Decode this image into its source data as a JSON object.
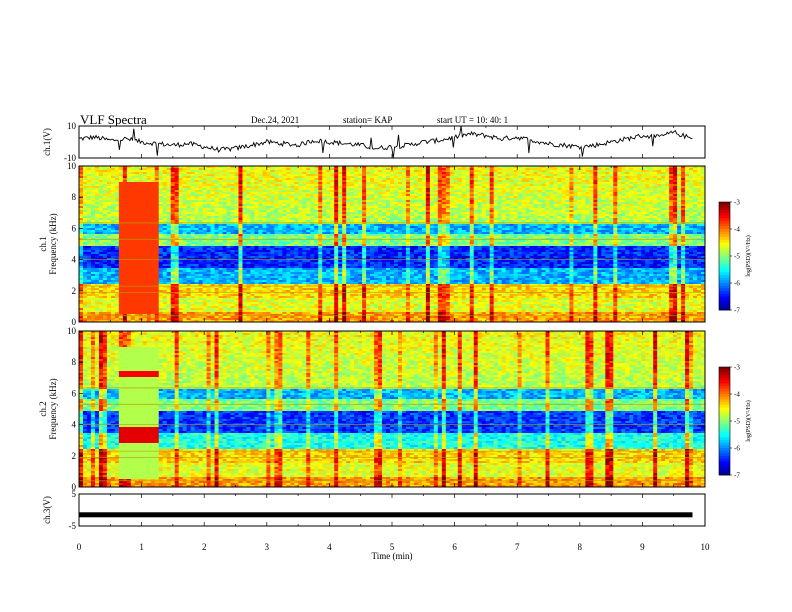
{
  "header": {
    "title": "VLF Spectra",
    "date": "Dec.24, 2021",
    "station": "station= KAP",
    "start": "start UT = 10: 40: 1"
  },
  "chart_data": [
    {
      "type": "line",
      "panel": "ch1-waveform",
      "ylabel": "ch.1(V)",
      "ylim": [
        -10,
        10
      ],
      "yticks": [
        "10",
        "-10"
      ],
      "xlim": [
        0,
        10
      ],
      "x": [
        0,
        0.25,
        0.5,
        0.75,
        1.0,
        1.25,
        1.5,
        1.75,
        2.0,
        2.25,
        2.5,
        2.75,
        3.0,
        3.25,
        3.5,
        3.75,
        4.0,
        4.25,
        4.5,
        4.75,
        5.0,
        5.25,
        5.5,
        5.75,
        6.0,
        6.25,
        6.5,
        6.75,
        7.0,
        7.25,
        7.5,
        7.75,
        8.0,
        8.25,
        8.5,
        8.75,
        9.0,
        9.25,
        9.5,
        9.8
      ],
      "values": [
        2,
        3,
        1,
        2,
        0,
        -1,
        -2,
        -1,
        -3,
        -5,
        -4,
        -2,
        0,
        -1,
        -2,
        1,
        0,
        -1,
        -2,
        -4,
        -3,
        -2,
        0,
        1,
        3,
        5,
        4,
        2,
        3,
        1,
        -1,
        -2,
        -3,
        -2,
        0,
        2,
        4,
        3,
        6,
        2
      ]
    },
    {
      "type": "heatmap",
      "panel": "ch1-spectrogram",
      "ylabel": "ch.1 Frequency (kHz)",
      "ylim": [
        0,
        10
      ],
      "yticks": [
        "0",
        "2",
        "4",
        "6",
        "8",
        "10"
      ],
      "xlim": [
        0,
        10
      ],
      "colorbar": {
        "label": "log(PSD)(V²/Hz)",
        "range": [
          -7,
          -3
        ],
        "ticks": [
          "-3",
          "-4",
          "-5",
          "-6",
          "-7"
        ]
      }
    },
    {
      "type": "heatmap",
      "panel": "ch2-spectrogram",
      "ylabel": "ch.2 Frequency (kHz)",
      "ylim": [
        0,
        10
      ],
      "yticks": [
        "0",
        "2",
        "4",
        "6",
        "8",
        "10"
      ],
      "xlim": [
        0,
        10
      ],
      "colorbar": {
        "label": "log(PSD)(V²/Hz)",
        "range": [
          -7,
          -3
        ],
        "ticks": [
          "-3",
          "-4",
          "-5",
          "-6",
          "-7"
        ]
      }
    },
    {
      "type": "line",
      "panel": "ch3-waveform",
      "ylabel": "ch.3(V)",
      "ylim": [
        -5,
        5
      ],
      "yticks": [
        "5",
        "-5"
      ],
      "xlim": [
        0,
        10
      ],
      "x": [
        0,
        9.8
      ],
      "values": [
        -1.5,
        -1.5
      ]
    }
  ],
  "xaxis": {
    "label": "Time (min)",
    "ticks": [
      "0",
      "1",
      "2",
      "3",
      "4",
      "5",
      "6",
      "7",
      "8",
      "9",
      "10"
    ]
  },
  "colors": {
    "jet": [
      "#00007f",
      "#0000ff",
      "#007fff",
      "#00ffff",
      "#7fff7f",
      "#ffff00",
      "#ff7f00",
      "#ff0000",
      "#7f0000"
    ]
  }
}
